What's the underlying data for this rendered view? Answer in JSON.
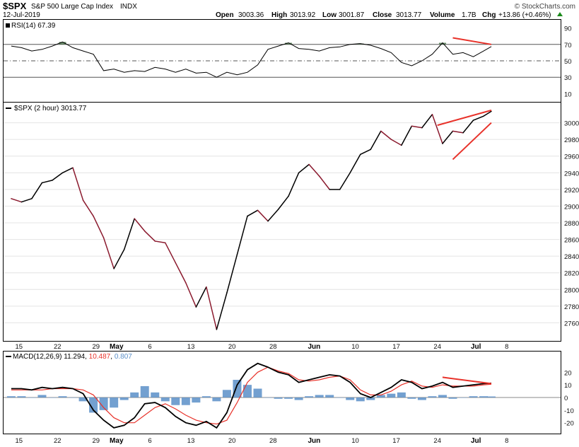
{
  "header": {
    "symbol": "$SPX",
    "name": "S&P 500 Large Cap Index",
    "exchange": "INDX",
    "date": "12-Jul-2019",
    "open_label": "Open",
    "open": "3003.36",
    "high_label": "High",
    "high": "3013.92",
    "low_label": "Low",
    "low": "3001.87",
    "close_label": "Close",
    "close": "3013.77",
    "volume_label": "Volume",
    "volume": "1.7B",
    "chg_label": "Chg",
    "chg": "+13.86 (+0.46%)",
    "watermark": "© StockCharts.com",
    "chg_color": "#1a8a1a"
  },
  "chart_data": [
    {
      "type": "line",
      "panel": "rsi",
      "label": "RSI(14) 67.39",
      "ylim": [
        0,
        100
      ],
      "yticks": [
        10,
        30,
        50,
        70,
        90
      ],
      "levels": [
        30,
        50,
        70
      ],
      "x": [
        0,
        4,
        8,
        12,
        16,
        20,
        24,
        28,
        32,
        36,
        40,
        44,
        48,
        52,
        56,
        60,
        64,
        68,
        72,
        76,
        80,
        84,
        88,
        92,
        96,
        100,
        104,
        108,
        112,
        116,
        120,
        124,
        128,
        132,
        136,
        140,
        144,
        148,
        152,
        156,
        160,
        164,
        168,
        172,
        176,
        180,
        184,
        187
      ],
      "values": [
        68,
        66,
        62,
        64,
        68,
        73,
        66,
        62,
        58,
        38,
        40,
        36,
        38,
        37,
        42,
        40,
        36,
        40,
        35,
        36,
        30,
        36,
        33,
        36,
        45,
        64,
        68,
        72,
        65,
        64,
        62,
        66,
        67,
        70,
        71,
        69,
        65,
        60,
        48,
        44,
        50,
        58,
        72,
        58,
        60,
        55,
        62,
        67.39
      ],
      "trendline": {
        "x": [
          172,
          187
        ],
        "values": [
          78,
          70
        ],
        "color": "#e8322a"
      }
    },
    {
      "type": "line",
      "panel": "price",
      "label": "$SPX (2 hour) 3013.77",
      "ylim": [
        2740,
        3020
      ],
      "yticks": [
        2760,
        2780,
        2800,
        2820,
        2840,
        2860,
        2880,
        2900,
        2920,
        2940,
        2960,
        2980,
        3000
      ],
      "x": [
        0,
        4,
        8,
        12,
        16,
        20,
        24,
        28,
        32,
        36,
        40,
        44,
        48,
        52,
        56,
        60,
        64,
        68,
        72,
        76,
        80,
        84,
        88,
        92,
        96,
        100,
        104,
        108,
        112,
        116,
        120,
        124,
        128,
        132,
        136,
        140,
        144,
        148,
        152,
        156,
        160,
        164,
        168,
        172,
        176,
        180,
        184,
        187
      ],
      "values": [
        2909,
        2905,
        2909,
        2928,
        2931,
        2940,
        2946,
        2907,
        2888,
        2862,
        2825,
        2848,
        2885,
        2870,
        2858,
        2856,
        2832,
        2808,
        2779,
        2803,
        2752,
        2796,
        2842,
        2888,
        2895,
        2882,
        2896,
        2912,
        2940,
        2950,
        2936,
        2920,
        2920,
        2940,
        2962,
        2968,
        2990,
        2980,
        2973,
        2996,
        2994,
        3010,
        2975,
        2990,
        2988,
        3003,
        3008,
        3013.77
      ],
      "down_color": "#8b1a2e",
      "up_color": "#000000",
      "trendline_upper": {
        "x": [
          166,
          187
        ],
        "values": [
          2997,
          3015
        ],
        "color": "#e8322a"
      },
      "trendline_lower": {
        "x": [
          172,
          187
        ],
        "values": [
          2956,
          3000
        ],
        "color": "#e8322a"
      }
    },
    {
      "type": "line",
      "panel": "macd",
      "label": "MACD(12,26,9) 11.294, 10.487, 0.807",
      "label_name": "MACD(12,26,9)",
      "label_macd": "11.294",
      "label_signal": "10.487",
      "label_hist": "0.807",
      "ylim": [
        -28,
        28
      ],
      "yticks": [
        -20,
        -10,
        0,
        10,
        20
      ],
      "x": [
        0,
        4,
        8,
        12,
        16,
        20,
        24,
        28,
        32,
        36,
        40,
        44,
        48,
        52,
        56,
        60,
        64,
        68,
        72,
        76,
        80,
        84,
        88,
        92,
        96,
        100,
        104,
        108,
        112,
        116,
        120,
        124,
        128,
        132,
        136,
        140,
        144,
        148,
        152,
        156,
        160,
        164,
        168,
        172,
        176,
        180,
        184,
        187
      ],
      "macd": [
        7,
        7,
        6,
        8,
        7,
        8,
        7,
        3,
        -10,
        -18,
        -24,
        -22,
        -16,
        -5,
        -4,
        -8,
        -15,
        -20,
        -22,
        -19,
        -24,
        -12,
        10,
        22,
        27,
        24,
        20,
        18,
        12,
        14,
        16,
        18,
        17,
        12,
        3,
        0,
        4,
        8,
        14,
        12,
        7,
        9,
        12,
        8,
        9,
        10,
        11,
        11.294
      ],
      "signal": [
        6,
        6,
        6,
        6,
        7,
        7,
        7,
        6,
        2,
        -8,
        -16,
        -20,
        -20,
        -14,
        -8,
        -5,
        -9,
        -14,
        -18,
        -20,
        -21,
        -18,
        -4,
        12,
        20,
        24,
        21,
        19,
        14,
        13,
        14,
        16,
        17,
        14,
        6,
        2,
        2,
        5,
        10,
        13,
        9,
        8,
        10,
        9,
        9,
        9,
        10,
        10.487
      ],
      "hist": [
        1,
        1,
        0,
        2,
        0,
        1,
        0,
        -3,
        -12,
        -10,
        -8,
        -2,
        4,
        9,
        4,
        -3,
        -6,
        -6,
        -4,
        1,
        -3,
        6,
        14,
        10,
        7,
        0,
        -1,
        -1,
        -2,
        1,
        2,
        2,
        0,
        -2,
        -3,
        -2,
        2,
        3,
        4,
        -1,
        -2,
        1,
        2,
        -1,
        0,
        1,
        1,
        0.807
      ],
      "macd_color": "#000000",
      "signal_color": "#e8322a",
      "hist_color": "#5b8fc8",
      "trendline": {
        "x": [
          168,
          187
        ],
        "values": [
          16,
          11
        ],
        "color": "#e8322a"
      }
    }
  ],
  "x_axis": {
    "labels": [
      {
        "x": 3,
        "text": "15",
        "bold": false
      },
      {
        "x": 18,
        "text": "22",
        "bold": false
      },
      {
        "x": 33,
        "text": "29",
        "bold": false
      },
      {
        "x": 41,
        "text": "May",
        "bold": true
      },
      {
        "x": 54,
        "text": "6",
        "bold": false
      },
      {
        "x": 70,
        "text": "13",
        "bold": false
      },
      {
        "x": 86,
        "text": "20",
        "bold": false
      },
      {
        "x": 102,
        "text": "28",
        "bold": false
      },
      {
        "x": 118,
        "text": "Jun",
        "bold": true
      },
      {
        "x": 134,
        "text": "10",
        "bold": false
      },
      {
        "x": 150,
        "text": "17",
        "bold": false
      },
      {
        "x": 166,
        "text": "24",
        "bold": false
      },
      {
        "x": 181,
        "text": "Jul",
        "bold": true
      },
      {
        "x": 193,
        "text": "8",
        "bold": false
      }
    ],
    "range": [
      -3,
      214
    ]
  }
}
